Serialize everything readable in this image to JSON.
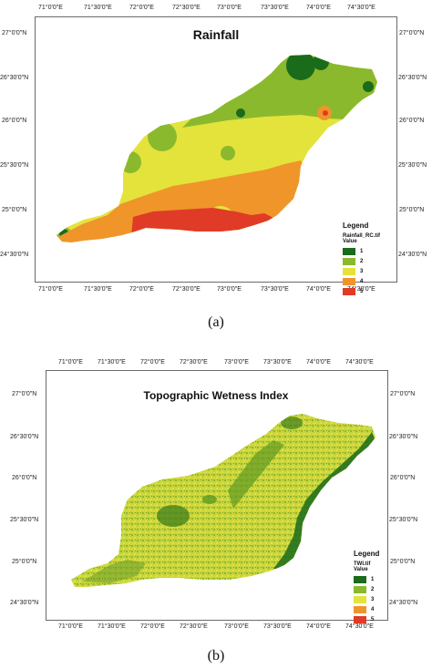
{
  "colors": {
    "class1": "#1a6b1a",
    "class2": "#8ab92e",
    "class3": "#e3e33c",
    "class4": "#f0952a",
    "class5": "#e03b26",
    "frame": "#6a6a6a"
  },
  "panel_a": {
    "title": "Rainfall",
    "caption": "(a)",
    "top_ticks": [
      "71°0'0\"E",
      "71°30'0\"E",
      "72°0'0\"E",
      "72°30'0\"E",
      "73°0'0\"E",
      "73°30'0\"E",
      "74°0'0\"E",
      "74°30'0\"E"
    ],
    "bottom_ticks": [
      "71°0'0\"E",
      "71°30'0\"E",
      "72°0'0\"E",
      "72°30'0\"E",
      "73°0'0\"E",
      "73°30'0\"E",
      "74°0'0\"E",
      "74°30'0\"E"
    ],
    "left_ticks": [
      "27°0'0\"N",
      "26°30'0\"N",
      "26°0'0\"N",
      "25°30'0\"N",
      "25°0'0\"N",
      "24°30'0\"N"
    ],
    "right_ticks": [
      "27°0'0\"N",
      "26°30'0\"N",
      "26°0'0\"N",
      "25°30'0\"N",
      "25°0'0\"N",
      "24°30'0\"N"
    ],
    "legend": {
      "title": "Legend",
      "file": "Rainfall_RC.tif",
      "field": "Value",
      "items": [
        {
          "label": "1",
          "color": "#1a6b1a"
        },
        {
          "label": "2",
          "color": "#8ab92e"
        },
        {
          "label": "3",
          "color": "#e3e33c"
        },
        {
          "label": "4",
          "color": "#f0952a"
        },
        {
          "label": "5",
          "color": "#e03b26"
        }
      ]
    }
  },
  "panel_b": {
    "title": "Topographic Wetness Index",
    "caption": "(b)",
    "top_ticks": [
      "71°0'0\"E",
      "71°30'0\"E",
      "72°0'0\"E",
      "72°30'0\"E",
      "73°0'0\"E",
      "73°30'0\"E",
      "74°0'0\"E",
      "74°30'0\"E"
    ],
    "bottom_ticks": [
      "71°0'0\"E",
      "71°30'0\"E",
      "72°0'0\"E",
      "72°30'0\"E",
      "73°0'0\"E",
      "73°30'0\"E",
      "74°0'0\"E",
      "74°30'0\"E"
    ],
    "left_ticks": [
      "27°0'0\"N",
      "26°30'0\"N",
      "26°0'0\"N",
      "25°30'0\"N",
      "25°0'0\"N",
      "24°30'0\"N"
    ],
    "right_ticks": [
      "27°0'0\"N",
      "26°30'0\"N",
      "26°0'0\"N",
      "25°30'0\"N",
      "25°0'0\"N",
      "24°30'0\"N"
    ],
    "legend": {
      "title": "Legend",
      "file": "TWI.tif",
      "field": "Value",
      "items": [
        {
          "label": "1",
          "color": "#1a6b1a"
        },
        {
          "label": "2",
          "color": "#8ab92e"
        },
        {
          "label": "3",
          "color": "#e3e33c"
        },
        {
          "label": "4",
          "color": "#f0952a"
        },
        {
          "label": "5",
          "color": "#e03b26"
        }
      ]
    }
  }
}
